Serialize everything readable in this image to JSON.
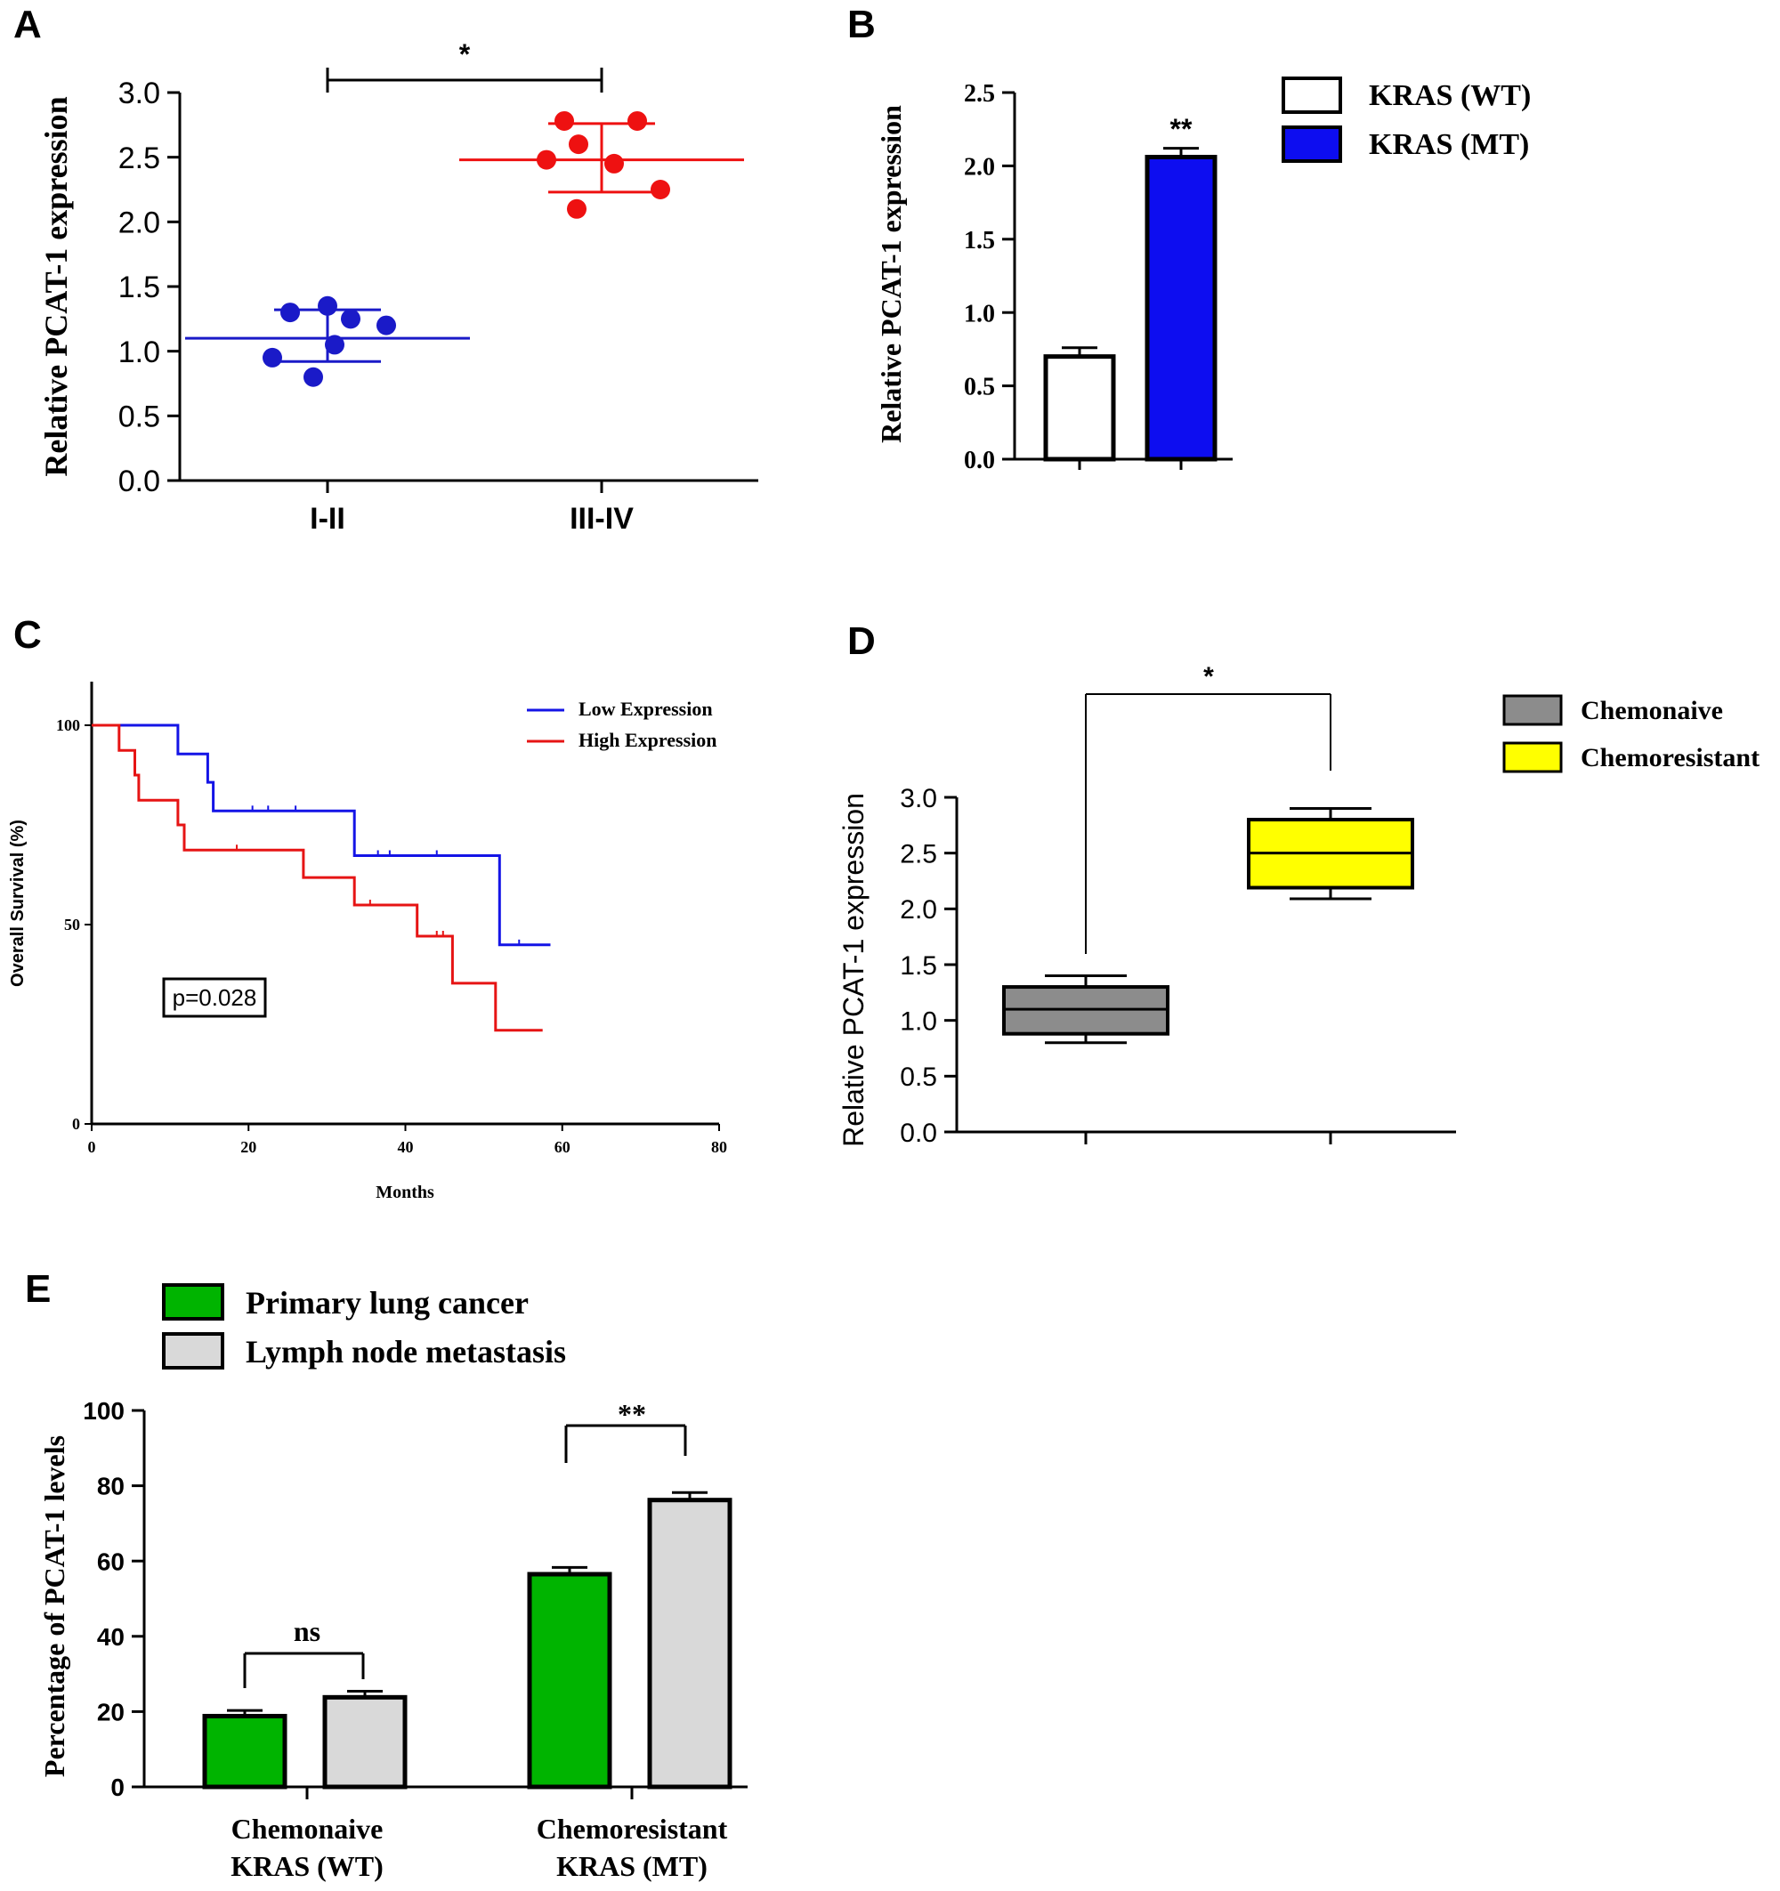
{
  "panels": {
    "A": {
      "letter": "A",
      "chart_data": {
        "type": "scatter",
        "ylabel": "Relative PCAT-1 expression",
        "xlabel": "",
        "ylim": [
          0,
          3
        ],
        "yticks": [
          "0.0",
          "0.5",
          "1.0",
          "1.5",
          "2.0",
          "2.5",
          "3.0"
        ],
        "categories": [
          "I-II",
          "III-IV"
        ],
        "colors": [
          "#1a1ac8",
          "#ee1111"
        ],
        "points": [
          [
            1.3,
            1.35,
            1.25,
            1.2,
            1.05,
            0.95,
            0.8
          ],
          [
            2.78,
            2.78,
            2.6,
            2.48,
            2.45,
            2.25,
            2.1
          ]
        ],
        "mean": [
          1.1,
          2.48
        ],
        "sd_upper": [
          1.32,
          2.76
        ],
        "sd_lower": [
          0.92,
          2.23
        ],
        "significance": "*"
      }
    },
    "B": {
      "letter": "B",
      "chart_data": {
        "type": "bar",
        "ylabel": "Relative PCAT-1 expression",
        "ylim": [
          0,
          2.5
        ],
        "yticks": [
          "0.0",
          "0.5",
          "1.0",
          "1.5",
          "2.0",
          "2.5"
        ],
        "series": [
          {
            "name": "KRAS (WT)",
            "value": 0.7,
            "error": 0.06,
            "color": "#ffffff"
          },
          {
            "name": "KRAS (MT)",
            "value": 2.06,
            "error": 0.06,
            "color": "#0d0df0"
          }
        ],
        "significance": "**"
      }
    },
    "C": {
      "letter": "C",
      "chart_data": {
        "type": "line",
        "ylabel": "Overall Survival (%)",
        "xlabel": "Months",
        "xlim": [
          0,
          80
        ],
        "ylim": [
          0,
          100
        ],
        "xticks": [
          "0",
          "20",
          "40",
          "60",
          "80"
        ],
        "yticks": [
          "0",
          "50",
          "100"
        ],
        "annotation": "p=0.028",
        "series": [
          {
            "name": "Low Expression",
            "color": "#1414e6",
            "steps": [
              [
                0,
                100
              ],
              [
                11,
                100
              ],
              [
                11,
                92.8
              ],
              [
                14.8,
                92.8
              ],
              [
                14.8,
                85.7
              ],
              [
                15.5,
                85.7
              ],
              [
                15.5,
                78.5
              ],
              [
                33.5,
                78.5
              ],
              [
                33.5,
                67.3
              ],
              [
                52,
                67.3
              ],
              [
                52,
                44.9
              ],
              [
                58.5,
                44.9
              ]
            ],
            "censored": [
              [
                20.5,
                78.5
              ],
              [
                22.5,
                78.5
              ],
              [
                26,
                78.5
              ],
              [
                36.5,
                67.3
              ],
              [
                38,
                67.3
              ],
              [
                44,
                67.3
              ],
              [
                54.5,
                44.9
              ]
            ]
          },
          {
            "name": "High Expression",
            "color": "#e61414",
            "steps": [
              [
                0,
                100
              ],
              [
                3.5,
                100
              ],
              [
                3.5,
                93.7
              ],
              [
                5.5,
                93.7
              ],
              [
                5.5,
                87.5
              ],
              [
                6,
                87.5
              ],
              [
                6,
                81.2
              ],
              [
                11,
                81.2
              ],
              [
                11,
                75
              ],
              [
                11.8,
                75
              ],
              [
                11.8,
                68.7
              ],
              [
                27,
                68.7
              ],
              [
                27,
                61.8
              ],
              [
                33.5,
                61.8
              ],
              [
                33.5,
                54.9
              ],
              [
                41.5,
                54.9
              ],
              [
                41.5,
                47.1
              ],
              [
                46,
                47.1
              ],
              [
                46,
                35.3
              ],
              [
                51.5,
                35.3
              ],
              [
                51.5,
                23.5
              ],
              [
                57.5,
                23.5
              ]
            ],
            "censored": [
              [
                18.5,
                68.7
              ],
              [
                35.5,
                54.9
              ],
              [
                44,
                47.1
              ],
              [
                44.8,
                47.1
              ]
            ]
          }
        ]
      }
    },
    "D": {
      "letter": "D",
      "chart_data": {
        "type": "box",
        "ylabel": "Relative PCAT-1 expression",
        "ylim": [
          0,
          3
        ],
        "yticks": [
          "0.0",
          "0.5",
          "1.0",
          "1.5",
          "2.0",
          "2.5",
          "3.0"
        ],
        "groups": [
          {
            "name": "Chemonaive",
            "color": "#8c8c8c",
            "min": 0.8,
            "q1": 0.88,
            "median": 1.1,
            "q3": 1.3,
            "max": 1.4
          },
          {
            "name": "Chemoresistant",
            "color": "#ffff00",
            "min": 2.09,
            "q1": 2.19,
            "median": 2.5,
            "q3": 2.8,
            "max": 2.9
          }
        ],
        "significance": "*"
      }
    },
    "E": {
      "letter": "E",
      "chart_data": {
        "type": "bar",
        "ylabel": "Percentage of PCAT-1 levels",
        "ylim": [
          0,
          100
        ],
        "yticks": [
          "0",
          "20",
          "40",
          "60",
          "80",
          "100"
        ],
        "categories": [
          [
            "Chemonaive",
            "KRAS (WT)"
          ],
          [
            "Chemoresistant",
            "KRAS (MT)"
          ]
        ],
        "series": [
          {
            "name": "Primary lung cancer",
            "color": "#00b400",
            "values": [
              18.8,
              56.5
            ],
            "errors": [
              1.5,
              1.8
            ]
          },
          {
            "name": "Lymph node metastasis",
            "color": "#d9d9d9",
            "values": [
              23.8,
              76.2
            ],
            "errors": [
              1.6,
              2.0
            ]
          }
        ],
        "significance": [
          "ns",
          "**"
        ]
      }
    }
  }
}
